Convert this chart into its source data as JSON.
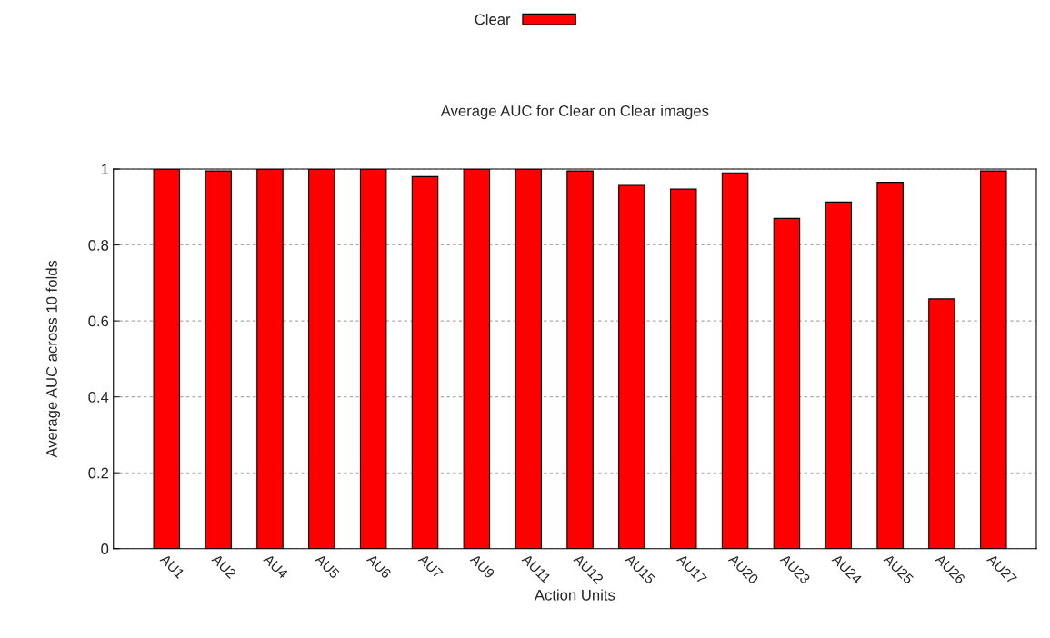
{
  "chart_data": {
    "type": "bar",
    "title": "Average AUC for Clear on Clear images",
    "xlabel": "Action Units",
    "ylabel": "Average AUC across 10 folds",
    "categories": [
      "AU1",
      "AU2",
      "AU4",
      "AU5",
      "AU6",
      "AU7",
      "AU9",
      "AU11",
      "AU12",
      "AU15",
      "AU17",
      "AU20",
      "AU23",
      "AU24",
      "AU25",
      "AU26",
      "AU27"
    ],
    "series": [
      {
        "name": "Clear",
        "color": "#ff0000",
        "values": [
          1.0,
          0.995,
          1.0,
          1.0,
          1.0,
          0.98,
          1.0,
          1.0,
          0.995,
          0.957,
          0.947,
          0.99,
          0.87,
          0.913,
          0.965,
          0.658,
          0.995
        ]
      }
    ],
    "ylim": [
      0,
      1
    ],
    "yticks": [
      0,
      0.2,
      0.4,
      0.6,
      0.8,
      1
    ],
    "grid": "y",
    "legend": "top"
  }
}
